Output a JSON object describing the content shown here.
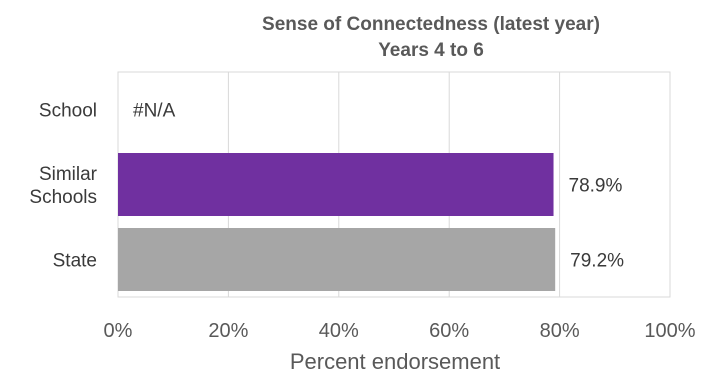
{
  "chart_data": {
    "type": "bar",
    "orientation": "horizontal",
    "title": "Sense of Connectedness (latest year)",
    "subtitle": "Years 4 to 6",
    "xlabel": "Percent endorsement",
    "ylabel": "",
    "categories": [
      "School",
      "Similar Schools",
      "State"
    ],
    "category_lines": [
      [
        "School"
      ],
      [
        "Similar",
        "Schools"
      ],
      [
        "State"
      ]
    ],
    "values": [
      null,
      78.9,
      79.2
    ],
    "data_labels": [
      "#N/A",
      "78.9%",
      "79.2%"
    ],
    "colors": [
      "#7030A0",
      "#7030A0",
      "#A6A6A6"
    ],
    "xlim": [
      0,
      100
    ],
    "x_ticks": [
      0,
      20,
      40,
      60,
      80,
      100
    ],
    "x_tick_labels": [
      "0%",
      "20%",
      "40%",
      "60%",
      "80%",
      "100%"
    ],
    "grid": true,
    "legend": "none"
  }
}
